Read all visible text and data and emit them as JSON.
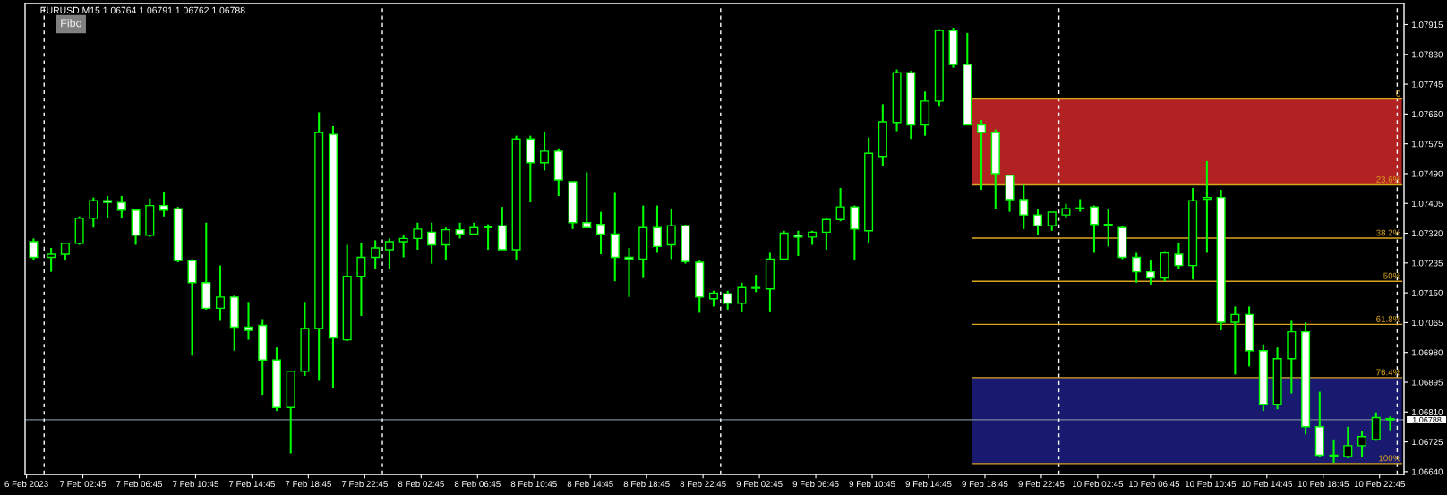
{
  "chart_data": {
    "type": "candlestick",
    "title": "EURUSD,M15 1.06764 1.06791 1.06762 1.06788",
    "annotations": [
      "Fibo"
    ],
    "color": "#00ff00",
    "x": [
      "2023-02-06T23:15",
      "2023-02-07T00:30",
      "2023-02-07T01:30",
      "2023-02-07T02:30",
      "2023-02-07T03:30",
      "2023-02-07T04:30",
      "2023-02-07T05:30",
      "2023-02-07T06:30",
      "2023-02-07T07:30",
      "2023-02-07T08:30",
      "2023-02-07T09:30",
      "2023-02-07T10:30",
      "2023-02-07T11:30",
      "2023-02-07T12:30",
      "2023-02-07T13:30",
      "2023-02-07T14:30",
      "2023-02-07T15:30",
      "2023-02-07T16:30",
      "2023-02-07T17:30",
      "2023-02-07T18:30",
      "2023-02-07T19:30",
      "2023-02-07T20:30",
      "2023-02-07T21:30",
      "2023-02-07T22:30",
      "2023-02-07T23:30",
      "2023-02-08T00:30",
      "2023-02-08T01:30",
      "2023-02-08T02:30",
      "2023-02-08T03:30",
      "2023-02-08T04:30",
      "2023-02-08T05:30",
      "2023-02-08T06:30",
      "2023-02-08T07:30",
      "2023-02-08T08:30",
      "2023-02-08T09:30",
      "2023-02-08T10:30",
      "2023-02-08T11:30",
      "2023-02-08T12:30",
      "2023-02-08T13:30",
      "2023-02-08T14:30",
      "2023-02-08T15:30",
      "2023-02-08T16:30",
      "2023-02-08T17:30",
      "2023-02-08T18:30",
      "2023-02-08T19:30",
      "2023-02-08T20:30",
      "2023-02-08T21:30",
      "2023-02-08T22:30",
      "2023-02-08T23:30",
      "2023-02-09T00:30",
      "2023-02-09T01:30",
      "2023-02-09T02:30",
      "2023-02-09T03:30",
      "2023-02-09T04:30",
      "2023-02-09T05:30",
      "2023-02-09T06:30",
      "2023-02-09T07:30",
      "2023-02-09T08:30",
      "2023-02-09T09:30",
      "2023-02-09T10:30",
      "2023-02-09T11:30",
      "2023-02-09T12:30",
      "2023-02-09T13:30",
      "2023-02-09T14:30",
      "2023-02-09T15:30",
      "2023-02-09T16:30",
      "2023-02-09T17:30",
      "2023-02-09T18:30",
      "2023-02-09T19:30",
      "2023-02-09T20:30",
      "2023-02-09T21:30",
      "2023-02-09T22:30",
      "2023-02-09T23:30",
      "2023-02-10T00:30",
      "2023-02-10T01:30",
      "2023-02-10T02:30",
      "2023-02-10T03:30",
      "2023-02-10T04:30",
      "2023-02-10T05:30",
      "2023-02-10T06:30",
      "2023-02-10T07:30",
      "2023-02-10T08:30",
      "2023-02-10T09:30",
      "2023-02-10T10:30",
      "2023-02-10T11:30",
      "2023-02-10T12:30",
      "2023-02-10T13:30",
      "2023-02-10T14:30",
      "2023-02-10T15:30",
      "2023-02-10T16:30",
      "2023-02-10T17:30",
      "2023-02-10T18:30",
      "2023-02-10T19:30",
      "2023-02-10T20:30",
      "2023-02-10T21:30",
      "2023-02-10T22:30",
      "2023-02-10T23:30"
    ],
    "ohlc": [
      [
        1.07296,
        1.07305,
        1.07242,
        1.07251
      ],
      [
        1.07251,
        1.07278,
        1.0721,
        1.0726
      ],
      [
        1.0726,
        1.07291,
        1.07242,
        1.07291
      ],
      [
        1.07291,
        1.07368,
        1.07287,
        1.07363
      ],
      [
        1.07363,
        1.07422,
        1.07336,
        1.07413
      ],
      [
        1.07413,
        1.07426,
        1.07363,
        1.07408
      ],
      [
        1.07408,
        1.07426,
        1.07363,
        1.07386
      ],
      [
        1.07386,
        1.0739,
        1.07287,
        1.07314
      ],
      [
        1.07314,
        1.07419,
        1.07309,
        1.07399
      ],
      [
        1.07399,
        1.07438,
        1.07368,
        1.07386
      ],
      [
        1.0739,
        1.07395,
        1.07237,
        1.07242
      ],
      [
        1.07242,
        1.07246,
        1.06971,
        1.07179
      ],
      [
        1.07179,
        1.0735,
        1.07102,
        1.07106
      ],
      [
        1.07106,
        1.07228,
        1.0707,
        1.07138
      ],
      [
        1.07138,
        1.07142,
        1.06985,
        1.07052
      ],
      [
        1.07052,
        1.07124,
        1.07016,
        1.07043
      ],
      [
        1.07057,
        1.07075,
        1.06859,
        1.06958
      ],
      [
        1.06958,
        1.06994,
        1.06813,
        1.06823
      ],
      [
        1.06823,
        1.06926,
        1.06692,
        1.06926
      ],
      [
        1.06926,
        1.07124,
        1.06913,
        1.07048
      ],
      [
        1.07048,
        1.07665,
        1.06899,
        1.07607
      ],
      [
        1.07602,
        1.07625,
        1.06877,
        1.07021
      ],
      [
        1.07016,
        1.07287,
        1.07012,
        1.07197
      ],
      [
        1.07197,
        1.07291,
        1.07084,
        1.07251
      ],
      [
        1.07251,
        1.073,
        1.07219,
        1.07278
      ],
      [
        1.07273,
        1.07305,
        1.07219,
        1.07296
      ],
      [
        1.07296,
        1.07314,
        1.07251,
        1.07305
      ],
      [
        1.07305,
        1.0735,
        1.07273,
        1.07332
      ],
      [
        1.07323,
        1.0735,
        1.07233,
        1.07287
      ],
      [
        1.07287,
        1.07336,
        1.07242,
        1.0733
      ],
      [
        1.0733,
        1.0735,
        1.07305,
        1.07318
      ],
      [
        1.07318,
        1.0735,
        1.07314,
        1.07336
      ],
      [
        1.07336,
        1.07345,
        1.07273,
        1.07338
      ],
      [
        1.07341,
        1.07395,
        1.07273,
        1.07273
      ],
      [
        1.07273,
        1.07598,
        1.07242,
        1.07589
      ],
      [
        1.07589,
        1.07598,
        1.07408,
        1.07521
      ],
      [
        1.07521,
        1.07609,
        1.07499,
        1.07554
      ],
      [
        1.07554,
        1.07562,
        1.07426,
        1.07472
      ],
      [
        1.07467,
        1.07467,
        1.07332,
        1.0735
      ],
      [
        1.0735,
        1.07494,
        1.07336,
        1.07336
      ],
      [
        1.07345,
        1.07381,
        1.0726,
        1.07318
      ],
      [
        1.07318,
        1.07435,
        1.07183,
        1.07251
      ],
      [
        1.07251,
        1.07278,
        1.07138,
        1.07246
      ],
      [
        1.07246,
        1.07399,
        1.07192,
        1.07336
      ],
      [
        1.07336,
        1.07399,
        1.07264,
        1.07282
      ],
      [
        1.07287,
        1.0739,
        1.07246,
        1.07341
      ],
      [
        1.07341,
        1.07344,
        1.07233,
        1.07239
      ],
      [
        1.07237,
        1.07242,
        1.07093,
        1.07138
      ],
      [
        1.07133,
        1.07156,
        1.07111,
        1.07149
      ],
      [
        1.07147,
        1.07156,
        1.07102,
        1.0712
      ],
      [
        1.0712,
        1.07179,
        1.07097,
        1.07165
      ],
      [
        1.07165,
        1.07201,
        1.07152,
        1.07163
      ],
      [
        1.07161,
        1.07264,
        1.07097,
        1.07246
      ],
      [
        1.07246,
        1.07327,
        1.07242,
        1.0732
      ],
      [
        1.07314,
        1.07327,
        1.07255,
        1.07309
      ],
      [
        1.07309,
        1.07327,
        1.07287,
        1.07323
      ],
      [
        1.07323,
        1.07363,
        1.07273,
        1.07359
      ],
      [
        1.07359,
        1.07449,
        1.07354,
        1.07395
      ],
      [
        1.07395,
        1.07399,
        1.07242,
        1.07332
      ],
      [
        1.07327,
        1.07593,
        1.07291,
        1.07548
      ],
      [
        1.07539,
        1.07688,
        1.07512,
        1.07638
      ],
      [
        1.07636,
        1.07787,
        1.07611,
        1.07778
      ],
      [
        1.07778,
        1.07783,
        1.07589,
        1.07629
      ],
      [
        1.07629,
        1.07724,
        1.07598,
        1.07697
      ],
      [
        1.07697,
        1.07902,
        1.07683,
        1.07898
      ],
      [
        1.07898,
        1.07906,
        1.07792,
        1.07801
      ],
      [
        1.07801,
        1.07891,
        1.07629,
        1.07629
      ],
      [
        1.07629,
        1.07643,
        1.07444,
        1.07607
      ],
      [
        1.07607,
        1.07616,
        1.0739,
        1.0749
      ],
      [
        1.07485,
        1.07485,
        1.07381,
        1.07416
      ],
      [
        1.07416,
        1.07458,
        1.07332,
        1.07372
      ],
      [
        1.07372,
        1.0739,
        1.07314,
        1.07341
      ],
      [
        1.07341,
        1.0738,
        1.07327,
        1.0738
      ],
      [
        1.07372,
        1.07404,
        1.07363,
        1.0739
      ],
      [
        1.0739,
        1.07417,
        1.07381,
        1.07392
      ],
      [
        1.07395,
        1.07399,
        1.07264,
        1.07345
      ],
      [
        1.07345,
        1.0739,
        1.07282,
        1.07341
      ],
      [
        1.07336,
        1.07341,
        1.07246,
        1.07251
      ],
      [
        1.07251,
        1.07264,
        1.07179,
        1.0721
      ],
      [
        1.0721,
        1.07242,
        1.07174,
        1.07192
      ],
      [
        1.07192,
        1.07269,
        1.07183,
        1.07264
      ],
      [
        1.0726,
        1.07291,
        1.07219,
        1.07228
      ],
      [
        1.07228,
        1.07449,
        1.07188,
        1.07413
      ],
      [
        1.07417,
        1.07526,
        1.07264,
        1.07422
      ],
      [
        1.07422,
        1.07444,
        1.07043,
        1.07066
      ],
      [
        1.07066,
        1.07111,
        1.06917,
        1.07088
      ],
      [
        1.07088,
        1.07111,
        1.0694,
        1.06985
      ],
      [
        1.06985,
        1.07003,
        1.06813,
        1.06832
      ],
      [
        1.06832,
        1.06994,
        1.06818,
        1.06962
      ],
      [
        1.06962,
        1.0707,
        1.06863,
        1.07039
      ],
      [
        1.07039,
        1.07066,
        1.06746,
        1.06768
      ],
      [
        1.06768,
        1.06868,
        1.06683,
        1.06687
      ],
      [
        1.06687,
        1.06732,
        1.06665,
        1.06685
      ],
      [
        1.06683,
        1.06768,
        1.06678,
        1.06714
      ],
      [
        1.06714,
        1.06755,
        1.06683,
        1.0674
      ],
      [
        1.06732,
        1.06809,
        1.06728,
        1.06794
      ],
      [
        1.06791,
        1.06797,
        1.06758,
        1.06788
      ]
    ],
    "colors": [
      "#ffffff",
      "#000000",
      "#000000",
      "#000000",
      "#000000",
      "#ffffff",
      "#ffffff",
      "#ffffff",
      "#000000",
      "#ffffff",
      "#ffffff",
      "#ffffff",
      "#ffffff",
      "#000000",
      "#ffffff",
      "#ffffff",
      "#ffffff",
      "#ffffff",
      "#000000",
      "#000000",
      "#000000",
      "#ffffff",
      "#000000",
      "#000000",
      "#000000",
      "#000000",
      "#000000",
      "#000000",
      "#ffffff",
      "#000000",
      "#ffffff",
      "#000000",
      "#000000",
      "#ffffff",
      "#000000",
      "#ffffff",
      "#000000",
      "#ffffff",
      "#ffffff",
      "#ffffff",
      "#ffffff",
      "#ffffff",
      "#ffffff",
      "#000000",
      "#ffffff",
      "#000000",
      "#ffffff",
      "#ffffff",
      "#000000",
      "#ffffff",
      "#000000",
      "#ffffff",
      "#000000",
      "#000000",
      "#ffffff",
      "#000000",
      "#000000",
      "#000000",
      "#ffffff",
      "#000000",
      "#000000",
      "#000000",
      "#ffffff",
      "#000000",
      "#000000",
      "#ffffff",
      "#ffffff",
      "#ffffff",
      "#ffffff",
      "#ffffff",
      "#ffffff",
      "#ffffff",
      "#000000",
      "#000000",
      "#000000",
      "#ffffff",
      "#ffffff",
      "#ffffff",
      "#ffffff",
      "#ffffff",
      "#000000",
      "#ffffff",
      "#000000",
      "#000000",
      "#ffffff",
      "#000000",
      "#ffffff",
      "#ffffff",
      "#000000",
      "#000000",
      "#ffffff",
      "#ffffff",
      "#ffffff",
      "#000000",
      "#000000",
      "#000000",
      "#ffffff"
    ],
    "series": [
      {
        "type": "line",
        "name": "0",
        "color": "#daa520",
        "x": [
          "2023-02-09T17:50",
          "2023-02-11T00:20"
        ],
        "values": [
          1.07703,
          1.07703
        ]
      },
      {
        "type": "line",
        "name": "23.6%",
        "color": "#daa520",
        "x": [
          "2023-02-09T17:50",
          "2023-02-11T00:20"
        ],
        "values": [
          1.07458,
          1.07458
        ]
      },
      {
        "type": "line",
        "name": "38.2%",
        "color": "#daa520",
        "x": [
          "2023-02-09T17:50",
          "2023-02-11T00:20"
        ],
        "values": [
          1.07306,
          1.07306
        ]
      },
      {
        "type": "line",
        "name": "50%",
        "color": "#daa520",
        "x": [
          "2023-02-09T17:50",
          "2023-02-11T00:20"
        ],
        "values": [
          1.07183,
          1.07183
        ]
      },
      {
        "type": "line",
        "name": "61.8%",
        "color": "#daa520",
        "x": [
          "2023-02-09T17:50",
          "2023-02-11T00:20"
        ],
        "values": [
          1.0706,
          1.0706
        ]
      },
      {
        "type": "line",
        "name": "76.4%",
        "color": "#daa520",
        "x": [
          "2023-02-09T17:50",
          "2023-02-11T00:20"
        ],
        "values": [
          1.06908,
          1.06908
        ]
      },
      {
        "type": "line",
        "name": "100%",
        "color": "#daa520",
        "x": [
          "2023-02-09T17:50",
          "2023-02-11T00:20"
        ],
        "values": [
          1.06663,
          1.06663
        ]
      }
    ],
    "bands": [
      {
        "axis": "y",
        "from": 1.07458,
        "to": 1.07703,
        "color": "#b22222"
      },
      {
        "axis": "y",
        "from": 1.06663,
        "to": 1.06908,
        "color": "#191970"
      }
    ],
    "ref_lines": [
      {
        "axis": "y",
        "value": 1.06788,
        "label": "1.06788",
        "color": "#778899"
      },
      {
        "axis": "x",
        "value": "2023-02-07T00:00",
        "color": "#ffffff",
        "line_style": "dashed"
      },
      {
        "axis": "x",
        "value": "2023-02-08T00:00",
        "color": "#ffffff",
        "line_style": "dashed"
      },
      {
        "axis": "x",
        "value": "2023-02-09T00:00",
        "color": "#ffffff",
        "line_style": "dashed"
      },
      {
        "axis": "x",
        "value": "2023-02-10T00:00",
        "color": "#ffffff",
        "line_style": "dashed"
      },
      {
        "axis": "x",
        "value": "2023-02-11T00:00",
        "color": "#ffffff",
        "line_style": "dashed"
      }
    ],
    "xlim": [
      "2023-02-06T22:39",
      "2023-02-11T00:29"
    ],
    "xticks": [
      {
        "value": "2023-02-06T22:45",
        "label": "6 Feb 2023"
      },
      {
        "value": "2023-02-07T02:45",
        "label": "7 Feb 02:45"
      },
      {
        "value": "2023-02-07T06:45",
        "label": "7 Feb 06:45"
      },
      {
        "value": "2023-02-07T10:45",
        "label": "7 Feb 10:45"
      },
      {
        "value": "2023-02-07T14:45",
        "label": "7 Feb 14:45"
      },
      {
        "value": "2023-02-07T18:45",
        "label": "7 Feb 18:45"
      },
      {
        "value": "2023-02-07T22:45",
        "label": "7 Feb 22:45"
      },
      {
        "value": "2023-02-08T02:45",
        "label": "8 Feb 02:45"
      },
      {
        "value": "2023-02-08T06:45",
        "label": "8 Feb 06:45"
      },
      {
        "value": "2023-02-08T10:45",
        "label": "8 Feb 10:45"
      },
      {
        "value": "2023-02-08T14:45",
        "label": "8 Feb 14:45"
      },
      {
        "value": "2023-02-08T18:45",
        "label": "8 Feb 18:45"
      },
      {
        "value": "2023-02-08T22:45",
        "label": "8 Feb 22:45"
      },
      {
        "value": "2023-02-09T02:45",
        "label": "9 Feb 02:45"
      },
      {
        "value": "2023-02-09T06:45",
        "label": "9 Feb 06:45"
      },
      {
        "value": "2023-02-09T10:45",
        "label": "9 Feb 10:45"
      },
      {
        "value": "2023-02-09T14:45",
        "label": "9 Feb 14:45"
      },
      {
        "value": "2023-02-09T18:45",
        "label": "9 Feb 18:45"
      },
      {
        "value": "2023-02-09T22:45",
        "label": "9 Feb 22:45"
      },
      {
        "value": "2023-02-10T02:45",
        "label": "10 Feb 02:45"
      },
      {
        "value": "2023-02-10T06:45",
        "label": "10 Feb 06:45"
      },
      {
        "value": "2023-02-10T10:45",
        "label": "10 Feb 10:45"
      },
      {
        "value": "2023-02-10T14:45",
        "label": "10 Feb 14:45"
      },
      {
        "value": "2023-02-10T18:45",
        "label": "10 Feb 18:45"
      },
      {
        "value": "2023-02-10T22:45",
        "label": "10 Feb 22:45"
      }
    ],
    "ylim": [
      1.06632,
      1.07975
    ],
    "yticks": [
      1.07915,
      {
        "value": 1.0783,
        "label": "1.07830"
      },
      1.07745,
      {
        "value": 1.0766,
        "label": "1.07660"
      },
      1.07575,
      {
        "value": 1.0749,
        "label": "1.07490"
      },
      1.07405,
      {
        "value": 1.0732,
        "label": "1.07320"
      },
      1.07235,
      {
        "value": 1.0715,
        "label": "1.07150"
      },
      1.07065,
      {
        "value": 1.0698,
        "label": "1.06980"
      },
      1.06895,
      {
        "value": 1.0681,
        "label": "1.06810"
      },
      1.06725,
      {
        "value": 1.0664,
        "label": "1.06640"
      }
    ]
  }
}
